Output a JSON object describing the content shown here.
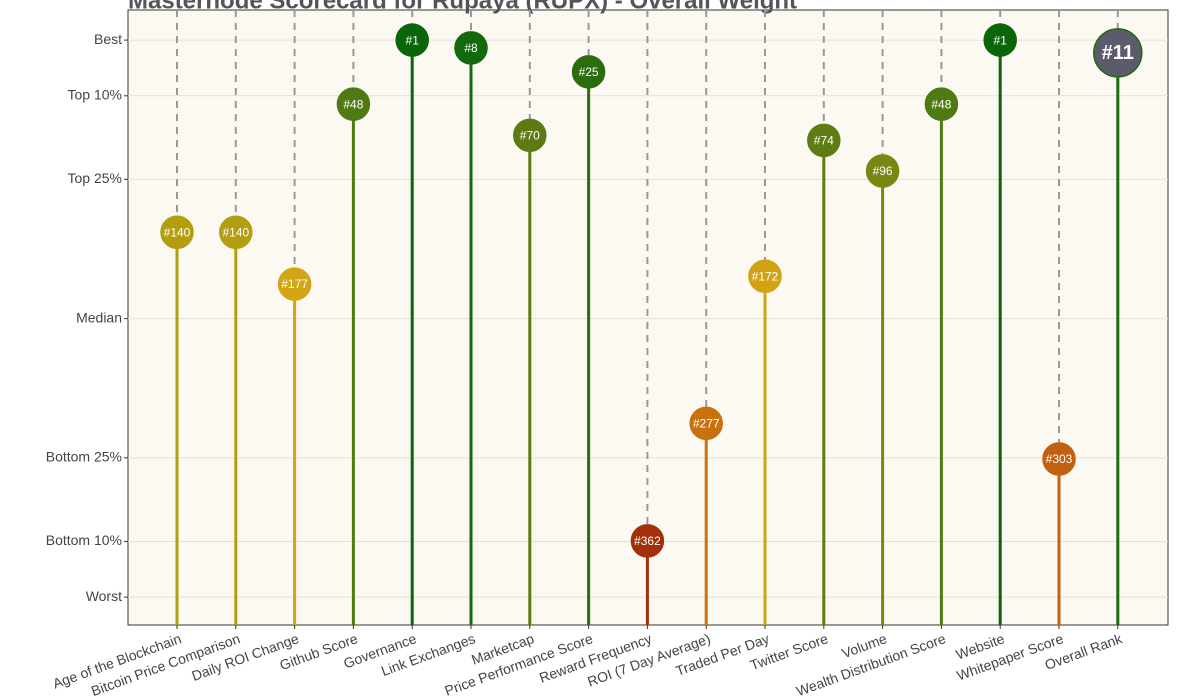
{
  "chart_data": {
    "type": "lollipop",
    "title": "Masternode Scorecard for Rupaya (RUPX) - Overall Weight",
    "categories": [
      "Age of the Blockchain",
      "Bitcoin Price Comparison",
      "Daily ROI Change",
      "Github Score",
      "Governance",
      "Link Exchanges",
      "Marketcap",
      "Price Performance Score",
      "Reward Frequency",
      "ROI (7 Day Average)",
      "Traded Per Day",
      "Twitter Score",
      "Volume",
      "Wealth Distribution Score",
      "Website",
      "Whitepaper Score",
      "Overall Rank"
    ],
    "values": [
      65.5,
      65.5,
      56.2,
      88.5,
      100,
      98.6,
      82.9,
      94.3,
      10.1,
      31.2,
      57.6,
      82.0,
      76.5,
      88.5,
      100,
      24.8,
      97.7
    ],
    "rank_labels": [
      "#140",
      "#140",
      "#177",
      "#48",
      "#1",
      "#8",
      "#70",
      "#25",
      "#362",
      "#277",
      "#172",
      "#74",
      "#96",
      "#48",
      "#1",
      "#303",
      "#11"
    ],
    "point_colors": [
      "#b39e12",
      "#b39e12",
      "#d2a515",
      "#4f7a12",
      "#0b650b",
      "#126a0c",
      "#5d7b12",
      "#2b6c0c",
      "#a3300a",
      "#c9700f",
      "#d1a314",
      "#5f7c12",
      "#7b8612",
      "#4f7a12",
      "#0b650b",
      "#c1600f",
      "#5b5b6b"
    ],
    "line_colors": [
      "#b39e12",
      "#b39e12",
      "#d2a515",
      "#4f7a12",
      "#0b650b",
      "#126a0c",
      "#5d7b12",
      "#2b6c0c",
      "#a3300a",
      "#c9700f",
      "#d1a314",
      "#5f7c12",
      "#7b8612",
      "#4f7a12",
      "#0b650b",
      "#c1600f",
      "#1d6a10"
    ],
    "ylim": [
      -5,
      105.4
    ],
    "yticks": [
      {
        "value": 0,
        "label": "Worst"
      },
      {
        "value": 10,
        "label": "Bottom 10%"
      },
      {
        "value": 25,
        "label": "Bottom 25%"
      },
      {
        "value": 50,
        "label": "Median"
      },
      {
        "value": 75,
        "label": "Top 25%"
      },
      {
        "value": 90,
        "label": "Top 10%"
      },
      {
        "value": 100,
        "label": "Best"
      }
    ],
    "grid": true
  }
}
